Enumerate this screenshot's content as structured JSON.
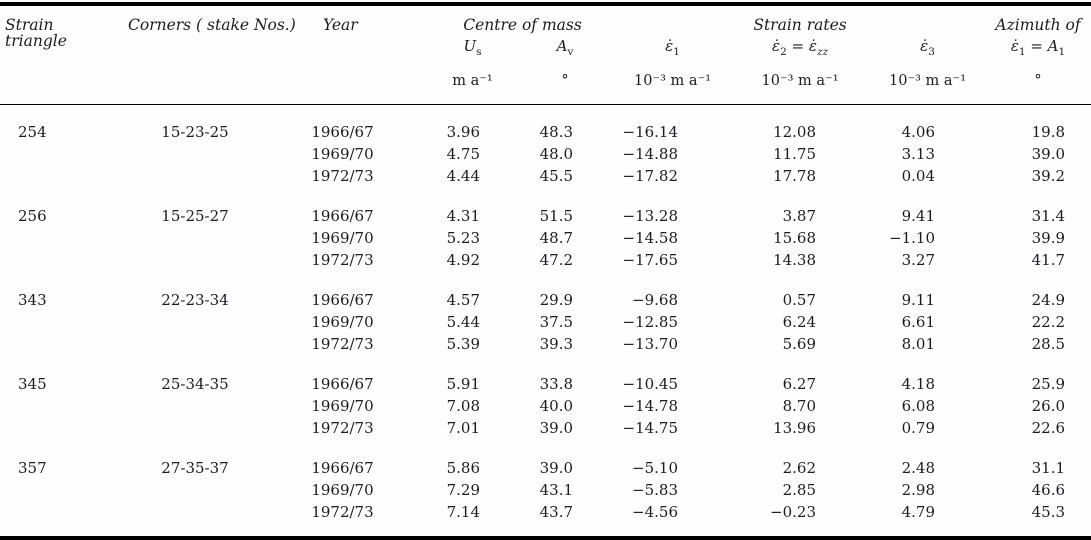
{
  "table": {
    "col_headers": {
      "strain_triangle": "Strain triangle",
      "corners": "Corners ( stake Nos.)",
      "year": "Year",
      "centre_of_mass": "Centre of mass",
      "strain_rates": "Strain rates",
      "azimuth_line1": "Azimuth of"
    },
    "sub_headers": {
      "us_base": "U",
      "us_sub": "s",
      "av_base": "A",
      "av_sub": "v",
      "e1_base": "ε̇",
      "e1_sub": "1",
      "e2_base": "ε̇",
      "e2_sub": "2",
      "e2_eq": " = ",
      "e2_base2": "ε̇",
      "e2_sub2": "zz",
      "e3_base": "ε̇",
      "e3_sub": "3",
      "az_base1": "ε̇",
      "az_sub1": "1",
      "az_eq": " = ",
      "az_base2": "A",
      "az_sub2": "1"
    },
    "units": {
      "us": "m a⁻¹",
      "av": "°",
      "e1": "10⁻³ m a⁻¹",
      "e2": "10⁻³ m a⁻¹",
      "e3": "10⁻³ m a⁻¹",
      "az": "°"
    },
    "groups": [
      {
        "triangle": "254",
        "corners": "15-23-25",
        "rows": [
          {
            "year": "1966/67",
            "us": "3.96",
            "av": "48.3",
            "e1": "−16.14",
            "e2": "12.08",
            "e3": "4.06",
            "az": "19.8"
          },
          {
            "year": "1969/70",
            "us": "4.75",
            "av": "48.0",
            "e1": "−14.88",
            "e2": "11.75",
            "e3": "3.13",
            "az": "39.0"
          },
          {
            "year": "1972/73",
            "us": "4.44",
            "av": "45.5",
            "e1": "−17.82",
            "e2": "17.78",
            "e3": "0.04",
            "az": "39.2"
          }
        ]
      },
      {
        "triangle": "256",
        "corners": "15-25-27",
        "rows": [
          {
            "year": "1966/67",
            "us": "4.31",
            "av": "51.5",
            "e1": "−13.28",
            "e2": "3.87",
            "e3": "9.41",
            "az": "31.4"
          },
          {
            "year": "1969/70",
            "us": "5.23",
            "av": "48.7",
            "e1": "−14.58",
            "e2": "15.68",
            "e3": "−1.10",
            "az": "39.9"
          },
          {
            "year": "1972/73",
            "us": "4.92",
            "av": "47.2",
            "e1": "−17.65",
            "e2": "14.38",
            "e3": "3.27",
            "az": "41.7"
          }
        ]
      },
      {
        "triangle": "343",
        "corners": "22-23-34",
        "rows": [
          {
            "year": "1966/67",
            "us": "4.57",
            "av": "29.9",
            "e1": "−9.68",
            "e2": "0.57",
            "e3": "9.11",
            "az": "24.9"
          },
          {
            "year": "1969/70",
            "us": "5.44",
            "av": "37.5",
            "e1": "−12.85",
            "e2": "6.24",
            "e3": "6.61",
            "az": "22.2"
          },
          {
            "year": "1972/73",
            "us": "5.39",
            "av": "39.3",
            "e1": "−13.70",
            "e2": "5.69",
            "e3": "8.01",
            "az": "28.5"
          }
        ]
      },
      {
        "triangle": "345",
        "corners": "25-34-35",
        "rows": [
          {
            "year": "1966/67",
            "us": "5.91",
            "av": "33.8",
            "e1": "−10.45",
            "e2": "6.27",
            "e3": "4.18",
            "az": "25.9"
          },
          {
            "year": "1969/70",
            "us": "7.08",
            "av": "40.0",
            "e1": "−14.78",
            "e2": "8.70",
            "e3": "6.08",
            "az": "26.0"
          },
          {
            "year": "1972/73",
            "us": "7.01",
            "av": "39.0",
            "e1": "−14.75",
            "e2": "13.96",
            "e3": "0.79",
            "az": "22.6"
          }
        ]
      },
      {
        "triangle": "357",
        "corners": "27-35-37",
        "rows": [
          {
            "year": "1966/67",
            "us": "5.86",
            "av": "39.0",
            "e1": "−5.10",
            "e2": "2.62",
            "e3": "2.48",
            "az": "31.1"
          },
          {
            "year": "1969/70",
            "us": "7.29",
            "av": "43.1",
            "e1": "−5.83",
            "e2": "2.85",
            "e3": "2.98",
            "az": "46.6"
          },
          {
            "year": "1972/73",
            "us": "7.14",
            "av": "43.7",
            "e1": "−4.56",
            "e2": "−0.23",
            "e3": "4.79",
            "az": "45.3"
          }
        ]
      }
    ]
  }
}
